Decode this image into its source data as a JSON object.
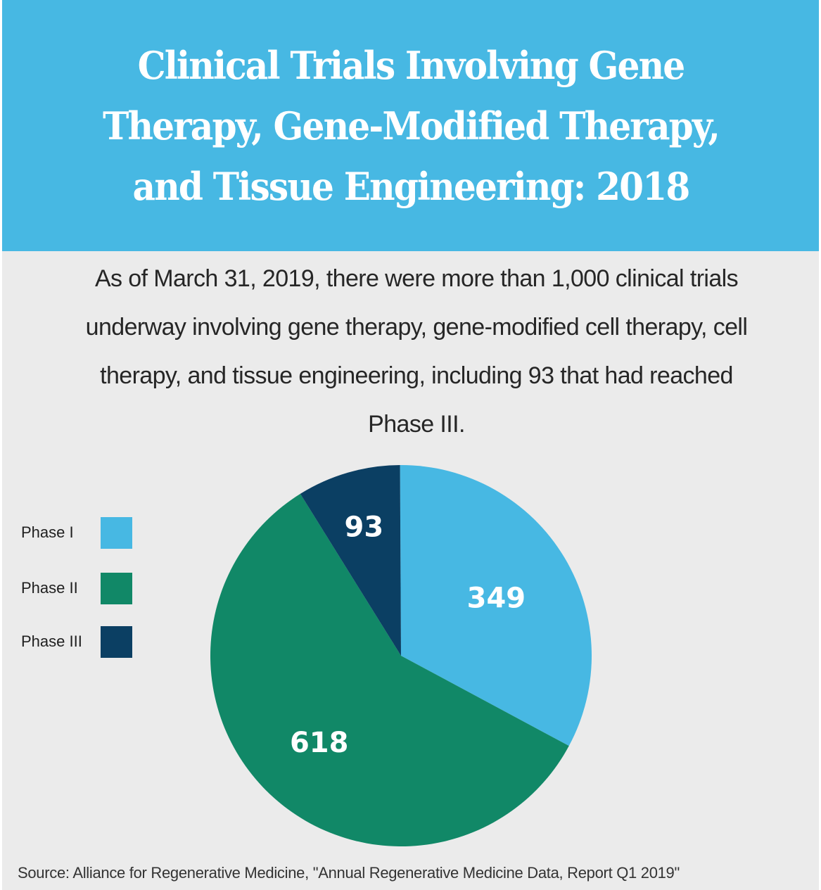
{
  "header": {
    "title": "Clinical Trials Involving Gene Therapy, Gene-Modified Therapy, and Tissue Engineering: 2018"
  },
  "intro": {
    "text": "As of March 31, 2019, there were more than 1,000 clinical trials underway involving gene therapy, gene-modified cell therapy, cell therapy, and tissue engineering, including 93 that had reached Phase III."
  },
  "colors": {
    "header_bg": "#47b8e3",
    "panel_bg": "#ebebeb",
    "phase_1": "#47b8e3",
    "phase_2": "#118867",
    "phase_3": "#0b3f63"
  },
  "chart_data": {
    "type": "pie",
    "title": "Clinical Trials Involving Gene Therapy, Gene-Modified Therapy, and Tissue Engineering: 2018",
    "categories": [
      "Phase I",
      "Phase II",
      "Phase III"
    ],
    "values": [
      349,
      618,
      93
    ],
    "start_angle_deg": 0,
    "direction": "clockwise",
    "legend_position": "left"
  },
  "source": {
    "text": "Source: Alliance for Regenerative Medicine, \"Annual Regenerative Medicine Data, Report Q1 2019\""
  }
}
